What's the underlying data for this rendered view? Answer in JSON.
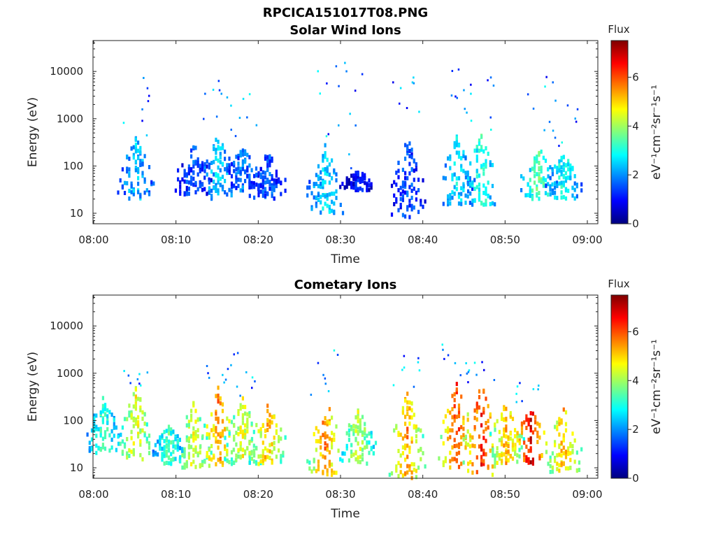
{
  "figure_title": "RPCICA151017T08.PNG",
  "colormap": [
    "#00007f",
    "#0000ff",
    "#007fff",
    "#00ffff",
    "#7fff7f",
    "#ffff00",
    "#ff7f00",
    "#ff0000",
    "#7f0000"
  ],
  "colorbar": {
    "title": "Flux",
    "label": "eV⁻¹cm⁻²sr⁻¹s⁻¹",
    "range": [
      0,
      7.5
    ],
    "ticks": [
      "0",
      "2",
      "4",
      "6"
    ]
  },
  "chart_data": [
    {
      "type": "heatmap",
      "title": "Solar Wind Ions",
      "xlabel": "Time",
      "ylabel": "Energy (eV)",
      "x_range": [
        "08:00",
        "09:00"
      ],
      "x_ticks": [
        "08:00",
        "08:10",
        "08:20",
        "08:30",
        "08:40",
        "08:50",
        "09:00"
      ],
      "y_scale": "log",
      "y_range": [
        6,
        45000
      ],
      "y_ticks": [
        "10",
        "100",
        "1000",
        "10000"
      ],
      "z_label": "Flux",
      "z_range": [
        0,
        7.5
      ],
      "events": [
        {
          "t": "08:05",
          "emin": 20,
          "emax": 400,
          "flux": 2.4,
          "hi": 20000
        },
        {
          "t": "08:12",
          "emin": 25,
          "emax": 300,
          "flux": 1.5,
          "hi": 0
        },
        {
          "t": "08:15",
          "emin": 20,
          "emax": 450,
          "flux": 2.5,
          "hi": 13000
        },
        {
          "t": "08:18",
          "emin": 30,
          "emax": 250,
          "flux": 1.8,
          "hi": 5000
        },
        {
          "t": "08:21",
          "emin": 20,
          "emax": 200,
          "flux": 1.6,
          "hi": 0
        },
        {
          "t": "08:28",
          "emin": 10,
          "emax": 300,
          "flux": 2.6,
          "hi": 15000
        },
        {
          "t": "08:32",
          "emin": 30,
          "emax": 80,
          "flux": 1.0,
          "hi": 24000
        },
        {
          "t": "08:38",
          "emin": 8,
          "emax": 400,
          "flux": 1.5,
          "hi": 8000
        },
        {
          "t": "08:44",
          "emin": 15,
          "emax": 450,
          "flux": 2.7,
          "hi": 13000
        },
        {
          "t": "08:47",
          "emin": 15,
          "emax": 500,
          "flux": 3.2,
          "hi": 10000
        },
        {
          "t": "08:54",
          "emin": 20,
          "emax": 300,
          "flux": 3.5,
          "hi": 11000
        },
        {
          "t": "08:57",
          "emin": 20,
          "emax": 200,
          "flux": 3.0,
          "hi": 2500
        }
      ]
    },
    {
      "type": "heatmap",
      "title": "Cometary Ions",
      "xlabel": "Time",
      "ylabel": "Energy (eV)",
      "x_range": [
        "08:00",
        "09:00"
      ],
      "x_ticks": [
        "08:00",
        "08:10",
        "08:20",
        "08:30",
        "08:40",
        "08:50",
        "09:00"
      ],
      "y_scale": "log",
      "y_range": [
        6,
        45000
      ],
      "y_ticks": [
        "10",
        "100",
        "1000",
        "10000"
      ],
      "z_label": "Flux",
      "z_range": [
        0,
        7.5
      ],
      "events": [
        {
          "t": "08:01",
          "emin": 20,
          "emax": 300,
          "flux": 3.3,
          "hi": 0
        },
        {
          "t": "08:05",
          "emin": 15,
          "emax": 500,
          "flux": 4.6,
          "hi": 1200
        },
        {
          "t": "08:09",
          "emin": 12,
          "emax": 80,
          "flux": 3.3,
          "hi": 0
        },
        {
          "t": "08:12",
          "emin": 10,
          "emax": 250,
          "flux": 4.5,
          "hi": 0
        },
        {
          "t": "08:15",
          "emin": 10,
          "emax": 500,
          "flux": 5.6,
          "hi": 1500
        },
        {
          "t": "08:18",
          "emin": 12,
          "emax": 300,
          "flux": 4.6,
          "hi": 2800
        },
        {
          "t": "08:21",
          "emin": 12,
          "emax": 300,
          "flux": 5.2,
          "hi": 0
        },
        {
          "t": "08:28",
          "emin": 7,
          "emax": 300,
          "flux": 5.6,
          "hi": 7500
        },
        {
          "t": "08:32",
          "emin": 12,
          "emax": 200,
          "flux": 4.3,
          "hi": 0
        },
        {
          "t": "08:38",
          "emin": 6,
          "emax": 500,
          "flux": 5.5,
          "hi": 2400
        },
        {
          "t": "08:44",
          "emin": 10,
          "emax": 600,
          "flux": 6.2,
          "hi": 5000
        },
        {
          "t": "08:47",
          "emin": 7,
          "emax": 600,
          "flux": 6.4,
          "hi": 2000
        },
        {
          "t": "08:50",
          "emin": 12,
          "emax": 250,
          "flux": 5.3,
          "hi": 0
        },
        {
          "t": "08:53",
          "emin": 12,
          "emax": 200,
          "flux": 6.8,
          "hi": 1000
        },
        {
          "t": "08:57",
          "emin": 8,
          "emax": 200,
          "flux": 5.2,
          "hi": 0
        }
      ]
    }
  ]
}
